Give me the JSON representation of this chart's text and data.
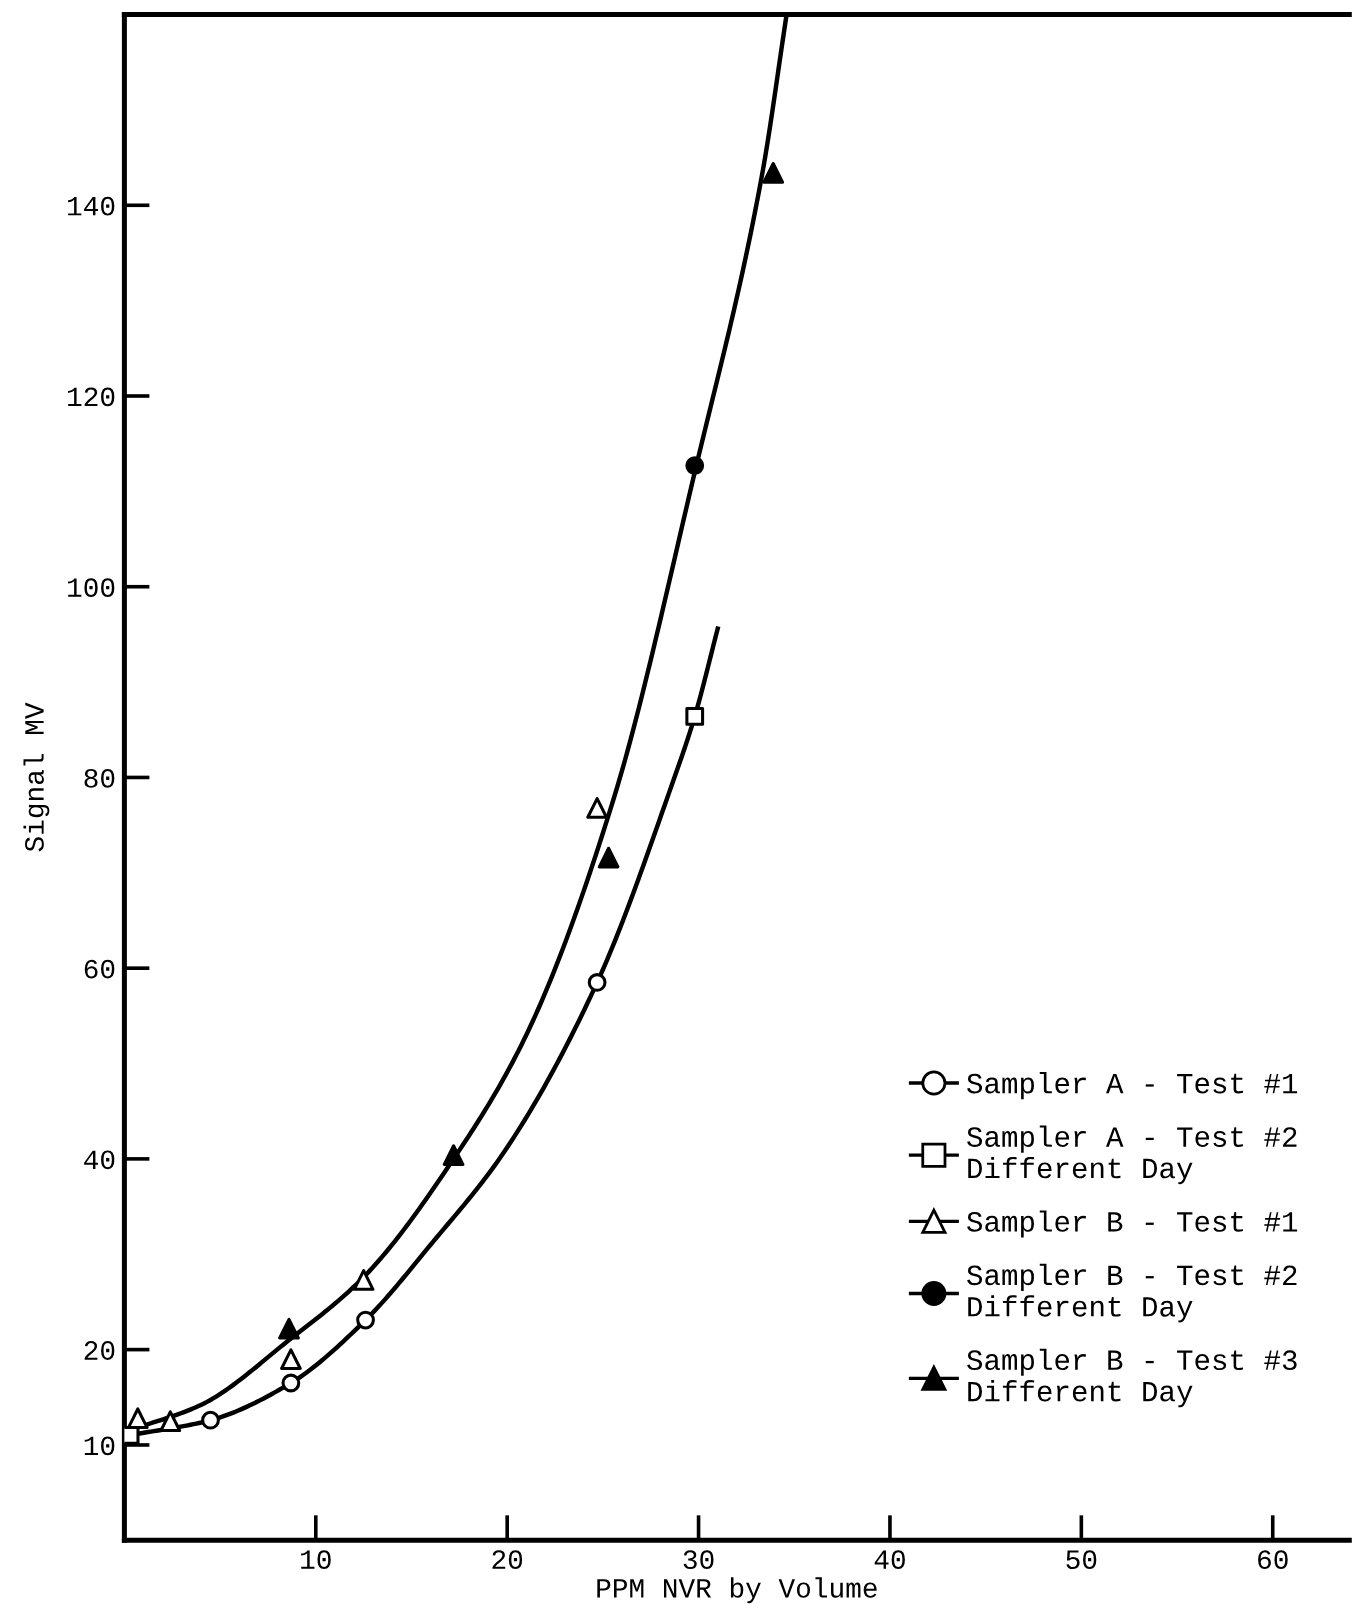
{
  "chart_data": {
    "type": "scatter",
    "xlabel": "PPM NVR by Volume",
    "ylabel": "Signal MV",
    "xlim": [
      0,
      64
    ],
    "ylim": [
      0,
      160
    ],
    "xticks": [
      10,
      20,
      30,
      40,
      50,
      60
    ],
    "yticks": [
      10,
      20,
      40,
      60,
      80,
      100,
      120,
      140
    ],
    "grid": false,
    "legend": "bottom right",
    "series": [
      {
        "name": "Sampler A - Test #1",
        "marker": "circle",
        "color": "#ffffff",
        "x": [
          4.5,
          8.7,
          12.6,
          24.7
        ],
        "values": [
          12.6,
          16.5,
          23.1,
          58.5
        ]
      },
      {
        "name": "Sampler A - Test #2\nDifferent Day",
        "marker": "square",
        "color": "#ffffff",
        "x": [
          0.3,
          29.8
        ],
        "values": [
          11,
          86.4
        ]
      },
      {
        "name": "Sampler B - Test #1",
        "marker": "triangle",
        "color": "#ffffff",
        "x": [
          0.7,
          2.4,
          8.7,
          12.5,
          24.7
        ],
        "values": [
          12.8,
          12.5,
          19.0,
          27.3,
          76.8
        ]
      },
      {
        "name": "Sampler B - Test #2\nDifferent Day",
        "marker": "circle",
        "color": "#000000",
        "x": [
          29.8
        ],
        "values": [
          112.7
        ]
      },
      {
        "name": "Sampler B - Test #3\nDifferent Day",
        "marker": "triangle",
        "color": "#000000",
        "x": [
          8.6,
          17.2,
          25.3,
          33.9
        ],
        "values": [
          22.2,
          40.4,
          71.6,
          143.4
        ]
      },
      {
        "type": "line",
        "marker": "none",
        "line_style": "solid",
        "color": "#000000",
        "x": [
          0.2,
          4,
          8.6,
          12.5,
          17.2,
          21,
          25.6,
          29.8,
          33.3,
          34.6
        ],
        "values": [
          11.5,
          14.2,
          21,
          27.6,
          40,
          53,
          78,
          112,
          143,
          160
        ]
      },
      {
        "type": "line",
        "marker": "none",
        "line_style": "solid",
        "color": "#000000",
        "x": [
          0.2,
          4.5,
          8.7,
          12.6,
          16,
          19.9,
          24.7,
          28.6,
          29.8,
          31.0
        ],
        "values": [
          11,
          12.6,
          16.5,
          23.1,
          31,
          40.9,
          58.5,
          79.2,
          86.4,
          95.6
        ]
      }
    ]
  }
}
